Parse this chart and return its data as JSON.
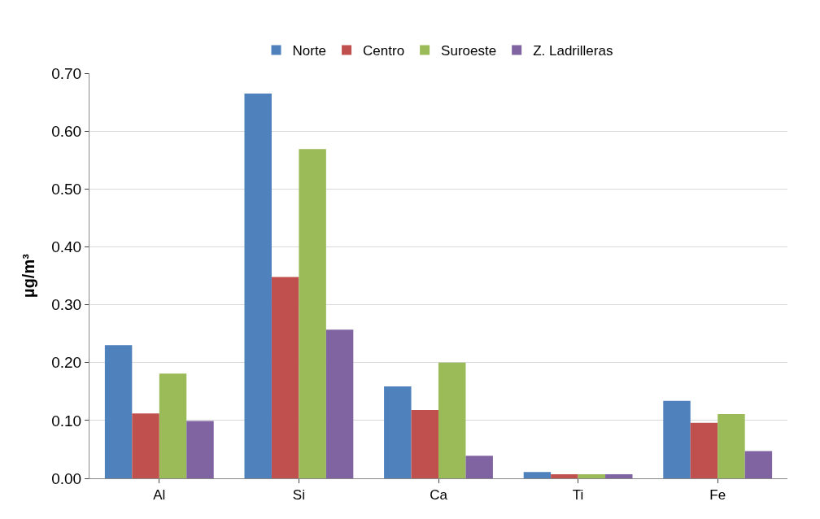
{
  "chart_data": {
    "type": "bar",
    "ylabel": "µg/m³",
    "categories": [
      "Al",
      "Si",
      "Ca",
      "Ti",
      "Fe"
    ],
    "series": [
      {
        "name": "Norte",
        "color": "#4f81bd",
        "values": [
          0.23,
          0.665,
          0.159,
          0.011,
          0.134
        ]
      },
      {
        "name": "Centro",
        "color": "#c0504d",
        "values": [
          0.112,
          0.348,
          0.118,
          0.007,
          0.096
        ]
      },
      {
        "name": "Suroeste",
        "color": "#9bbb59",
        "values": [
          0.181,
          0.569,
          0.2,
          0.007,
          0.111
        ]
      },
      {
        "name": "Z. Ladrilleras",
        "color": "#8064a2",
        "values": [
          0.099,
          0.257,
          0.039,
          0.007,
          0.047
        ]
      }
    ],
    "ylim": [
      0,
      0.7
    ],
    "yticks": [
      {
        "value": 0,
        "label": "0.00"
      },
      {
        "value": 0.1,
        "label": "0.10"
      },
      {
        "value": 0.2,
        "label": "0.20"
      },
      {
        "value": 0.3,
        "label": "0.30"
      },
      {
        "value": 0.4,
        "label": "0.40"
      },
      {
        "value": 0.5,
        "label": "0.50"
      },
      {
        "value": 0.6,
        "label": "0.60"
      },
      {
        "value": 0.7,
        "label": "0.70"
      }
    ],
    "grid": "y",
    "legend": "top"
  }
}
